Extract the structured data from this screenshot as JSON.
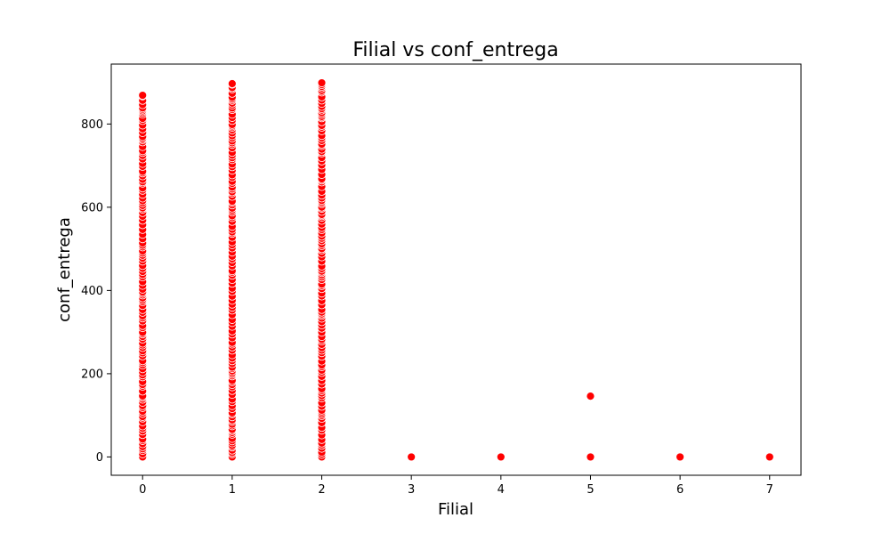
{
  "chart_data": {
    "type": "scatter",
    "title": "Filial vs conf_entrega",
    "xlabel": "Filial",
    "ylabel": "conf_entrega",
    "xlim": [
      -0.35,
      7.35
    ],
    "ylim": [
      -44,
      944
    ],
    "xticks": [
      0,
      1,
      2,
      3,
      4,
      5,
      6,
      7
    ],
    "yticks": [
      0,
      200,
      400,
      600,
      800
    ],
    "marker_color": "#ff0000",
    "marker_edge_color": "#ffffff",
    "grid": false,
    "legend": false,
    "column_ranges": [
      {
        "x": 0,
        "y_min": 0,
        "y_max": 869
      },
      {
        "x": 1,
        "y_min": 0,
        "y_max": 897
      },
      {
        "x": 2,
        "y_min": 0,
        "y_max": 899
      }
    ],
    "points": [
      {
        "x": 3,
        "y": 0
      },
      {
        "x": 4,
        "y": 0
      },
      {
        "x": 5,
        "y": 0
      },
      {
        "x": 5,
        "y": 146
      },
      {
        "x": 6,
        "y": 0
      },
      {
        "x": 7,
        "y": 0
      }
    ]
  }
}
